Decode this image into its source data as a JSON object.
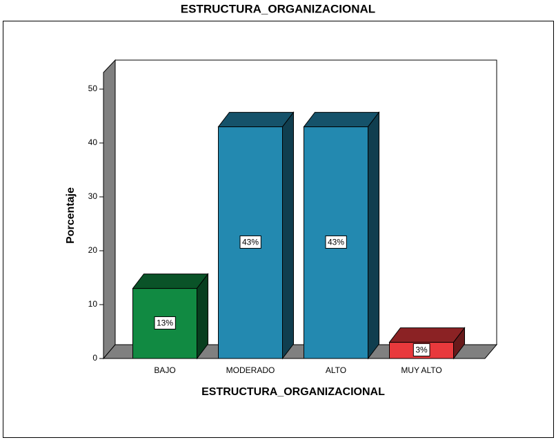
{
  "chart_data": {
    "type": "bar3d",
    "title": "ESTRUCTURA_ORGANIZACIONAL",
    "xlabel": "ESTRUCTURA_ORGANIZACIONAL",
    "ylabel": "Porcentaje",
    "categories": [
      "BAJO",
      "MODERADO",
      "ALTO",
      "MUY ALTO"
    ],
    "values": [
      13,
      43,
      43,
      3
    ],
    "value_labels": [
      "13%",
      "43%",
      "43%",
      "3%"
    ],
    "colors": [
      "#118a42",
      "#2389b0",
      "#2389b0",
      "#e8393c"
    ],
    "ylim": [
      0,
      50
    ],
    "yticks": [
      0,
      10,
      20,
      30,
      40,
      50
    ]
  }
}
